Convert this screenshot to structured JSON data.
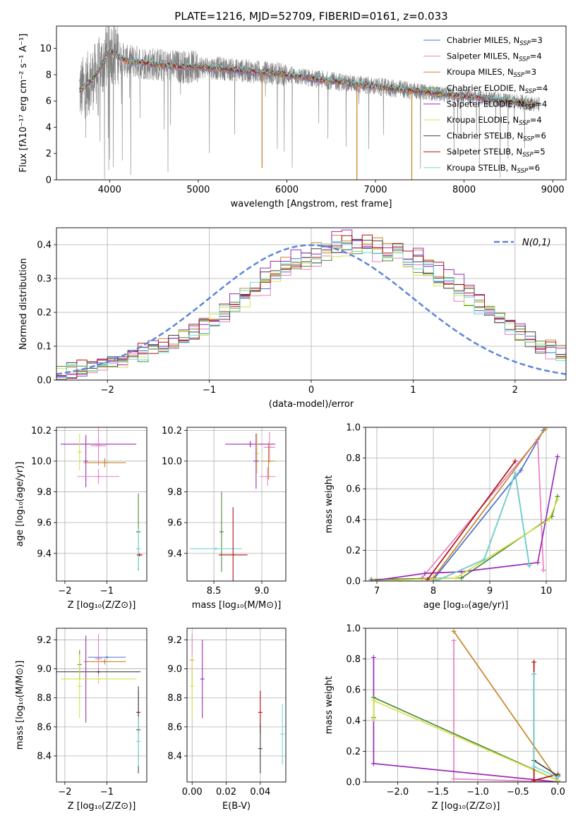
{
  "figure": {
    "title": "PLATE=1216, MJD=52709, FIBERID=0161, z=0.033"
  },
  "chart_data": [
    {
      "id": "spectrum",
      "type": "line",
      "title": "PLATE=1216, MJD=52709, FIBERID=0161, z=0.033",
      "xlabel": "wavelength [Angstrom, rest frame]",
      "ylabel": "Flux [fλ10⁻¹⁷ erg cm⁻² s⁻¹ A⁻¹]",
      "xlim": [
        3400,
        9150
      ],
      "ylim": [
        0,
        11.7
      ],
      "xticks": [
        4000,
        5000,
        6000,
        7000,
        8000,
        9000
      ],
      "yticks": [
        0,
        2,
        4,
        6,
        8,
        10
      ],
      "grid": false,
      "legend_position": "top-right",
      "data_range": [
        3660,
        8850
      ],
      "observed_color": "#808080",
      "continuum": {
        "x": [
          3660,
          3700,
          3800,
          3900,
          4000,
          4100,
          4200,
          4300,
          4400,
          4600,
          4800,
          5000,
          5300,
          5600,
          6000,
          6300,
          6600,
          7000,
          7400,
          7800,
          8200,
          8500,
          8850
        ],
        "y": [
          6.8,
          7.0,
          7.6,
          8.6,
          9.9,
          9.4,
          9.0,
          9.0,
          8.9,
          8.7,
          8.6,
          8.6,
          8.45,
          8.25,
          8.0,
          7.7,
          7.45,
          7.1,
          6.8,
          6.5,
          6.25,
          6.0,
          5.75
        ]
      },
      "absorption_features": [
        {
          "x": 5720,
          "y": 0.9
        },
        {
          "x": 6790,
          "y": 0.0
        },
        {
          "x": 7410,
          "y": 0.0
        }
      ],
      "series": [
        {
          "name": "Chabrier MILES, N_SSP=3",
          "color": "#4a6fd0"
        },
        {
          "name": "Salpeter MILES, N_SSP=4",
          "color": "#e87fc0"
        },
        {
          "name": "Kroupa MILES, N_SSP=3",
          "color": "#c8862a"
        },
        {
          "name": "Chabrier ELODIE, N_SSP=4",
          "color": "#4f8a3c"
        },
        {
          "name": "Salpeter ELODIE, N_SSP=4",
          "color": "#9a2bb8"
        },
        {
          "name": "Kroupa ELODIE, N_SSP=4",
          "color": "#d6e34c"
        },
        {
          "name": "Chabrier STELIB, N_SSP=6",
          "color": "#444444"
        },
        {
          "name": "Salpeter STELIB, N_SSP=5",
          "color": "#b01010"
        },
        {
          "name": "Kroupa STELIB, N_SSP=6",
          "color": "#72d6d8"
        }
      ]
    },
    {
      "id": "residuals",
      "type": "line",
      "xlabel": "(data-model)/error",
      "ylabel": "Normed distribution",
      "xlim": [
        -2.5,
        2.5
      ],
      "ylim": [
        0,
        0.45
      ],
      "xticks": [
        -2,
        -1,
        0,
        1,
        2
      ],
      "yticks": [
        0.0,
        0.1,
        0.2,
        0.3,
        0.4
      ],
      "grid": true,
      "legend_position": "top-right",
      "gauss_label": "N(0,1)",
      "gauss_color": "#5a87d8",
      "histogram": {
        "bin_edges_start": -2.5,
        "bin_width": 0.1,
        "values": [
          0.02,
          0.025,
          0.03,
          0.04,
          0.05,
          0.055,
          0.06,
          0.07,
          0.08,
          0.09,
          0.1,
          0.11,
          0.125,
          0.14,
          0.16,
          0.18,
          0.2,
          0.22,
          0.25,
          0.27,
          0.29,
          0.31,
          0.33,
          0.34,
          0.36,
          0.37,
          0.385,
          0.395,
          0.4,
          0.4,
          0.395,
          0.39,
          0.385,
          0.375,
          0.36,
          0.35,
          0.33,
          0.31,
          0.29,
          0.27,
          0.25,
          0.22,
          0.2,
          0.18,
          0.16,
          0.14,
          0.12,
          0.1,
          0.09,
          0.075
        ]
      }
    },
    {
      "id": "age_vs_Z",
      "type": "scatter",
      "xlabel": "Z [log₁₀(Z/Z⊙)]",
      "ylabel": "age  [log₁₀(age/yr)]",
      "xlim": [
        -2.2,
        -0.05
      ],
      "ylim": [
        9.22,
        10.22
      ],
      "xticks": [
        -2,
        -1
      ],
      "yticks": [
        9.4,
        9.6,
        9.8,
        10.0,
        10.2
      ],
      "grid": true,
      "points": [
        {
          "s": 4,
          "x": -1.2,
          "xerr": 0.9,
          "y": 10.11,
          "yerr": 0.02
        },
        {
          "s": 1,
          "x": -1.2,
          "xerr": 0.18,
          "y": 10.1,
          "yerr": 0.13
        },
        {
          "s": 5,
          "x": -1.65,
          "xerr": 0.05,
          "y": 10.06,
          "yerr": 0.12
        },
        {
          "s": 2,
          "x": -1.05,
          "xerr": 0.5,
          "y": 9.99,
          "yerr": 0.03
        },
        {
          "s": 4,
          "x": -1.5,
          "xerr": 0.02,
          "y": 10.0,
          "yerr": 0.17
        },
        {
          "s": 1,
          "x": -1.2,
          "xerr": 0.5,
          "y": 9.9,
          "yerr": 0.05
        },
        {
          "s": 3,
          "x": -0.25,
          "xerr": 0.05,
          "y": 9.54,
          "yerr": 0.25
        },
        {
          "s": 8,
          "x": -0.25,
          "xerr": 0.03,
          "y": 9.43,
          "yerr": 0.13
        },
        {
          "s": 7,
          "x": -0.22,
          "xerr": 0.07,
          "y": 9.39,
          "yerr": 0.01
        }
      ]
    },
    {
      "id": "age_vs_mass",
      "type": "scatter",
      "xlabel": "mass [log₁₀(M/M⊙)]",
      "ylabel": "",
      "xlim": [
        8.22,
        9.25
      ],
      "ylim": [
        9.22,
        10.22
      ],
      "xticks": [
        8.5,
        9.0
      ],
      "yticks": [
        9.4,
        9.6,
        9.8,
        10.0,
        10.2
      ],
      "grid": true,
      "points": [
        {
          "s": 4,
          "x": 8.88,
          "xerr": 0.26,
          "y": 10.11,
          "yerr": 0.02
        },
        {
          "s": 1,
          "x": 9.08,
          "xerr": 0.06,
          "y": 10.09,
          "yerr": 0.1
        },
        {
          "s": 5,
          "x": 8.95,
          "xerr": 0.02,
          "y": 10.05,
          "yerr": 0.13
        },
        {
          "s": 2,
          "x": 9.07,
          "xerr": 0.07,
          "y": 10.0,
          "yerr": 0.12
        },
        {
          "s": 4,
          "x": 8.94,
          "xerr": 0.03,
          "y": 10.0,
          "yerr": 0.18
        },
        {
          "s": 1,
          "x": 9.06,
          "xerr": 0.08,
          "y": 9.9,
          "yerr": 0.06
        },
        {
          "s": 3,
          "x": 8.58,
          "xerr": 0.01,
          "y": 9.54,
          "yerr": 0.26
        },
        {
          "s": 8,
          "x": 8.52,
          "xerr": 0.27,
          "y": 9.43,
          "yerr": 0.01
        },
        {
          "s": 7,
          "x": 8.7,
          "xerr": 0.15,
          "y": 9.39,
          "yerr": 0.31
        }
      ]
    },
    {
      "id": "weight_vs_age",
      "type": "line",
      "xlabel": "age  [log₁₀(age/yr)]",
      "ylabel": "mass weight",
      "xlim": [
        6.8,
        10.35
      ],
      "ylim": [
        0,
        1
      ],
      "xticks": [
        7,
        8,
        9,
        10
      ],
      "yticks": [
        0.0,
        0.2,
        0.4,
        0.6,
        0.8,
        1.0
      ],
      "grid": true,
      "series": [
        {
          "s": 0,
          "x": [
            8.0,
            9.55,
            9.95
          ],
          "y": [
            0.01,
            0.72,
            0.98
          ]
        },
        {
          "s": 1,
          "x": [
            7.8,
            9.85,
            9.95
          ],
          "y": [
            0.02,
            0.92,
            0.07
          ]
        },
        {
          "s": 2,
          "x": [
            8.0,
            9.98
          ],
          "y": [
            0.02,
            0.99
          ]
        },
        {
          "s": 3,
          "x": [
            6.9,
            8.5,
            10.1,
            10.2
          ],
          "y": [
            0.01,
            0.02,
            0.42,
            0.55
          ]
        },
        {
          "s": 4,
          "x": [
            6.9,
            7.85,
            8.5,
            9.85,
            10.2
          ],
          "y": [
            0.0,
            0.05,
            0.06,
            0.12,
            0.81
          ]
        },
        {
          "s": 5,
          "x": [
            6.95,
            8.4,
            10.05,
            10.2
          ],
          "y": [
            0.0,
            0.02,
            0.4,
            0.53
          ]
        },
        {
          "s": 6,
          "x": [
            8.05,
            8.9,
            9.45,
            9.7
          ],
          "y": [
            0.0,
            0.14,
            0.7,
            0.1
          ]
        },
        {
          "s": 7,
          "x": [
            7.9,
            9.45
          ],
          "y": [
            0.01,
            0.78
          ]
        },
        {
          "s": 8,
          "x": [
            8.05,
            8.9,
            9.45,
            9.7
          ],
          "y": [
            0.0,
            0.14,
            0.7,
            0.1
          ]
        }
      ]
    },
    {
      "id": "mass_vs_Z",
      "type": "scatter",
      "xlabel": "Z [log₁₀(Z/Z⊙)]",
      "ylabel": "mass [log₁₀(M/M⊙)]",
      "xlim": [
        -2.2,
        -0.05
      ],
      "ylim": [
        8.22,
        9.28
      ],
      "xticks": [
        -2,
        -1
      ],
      "yticks": [
        8.4,
        8.6,
        8.8,
        9.0,
        9.2
      ],
      "grid": true,
      "points": [
        {
          "s": 1,
          "x": -1.2,
          "xerr": 0.08,
          "y": 9.07,
          "yerr": 0.17
        },
        {
          "s": 0,
          "x": -1.0,
          "xerr": 0.45,
          "y": 9.08,
          "yerr": 0.01
        },
        {
          "s": 2,
          "x": -1.05,
          "xerr": 0.5,
          "y": 9.05,
          "yerr": 0.02
        },
        {
          "s": 3,
          "x": -1.65,
          "xerr": 0.02,
          "y": 9.03,
          "yerr": 0.1
        },
        {
          "s": 6,
          "x": -1.2,
          "xerr": 1.0,
          "y": 8.98,
          "yerr": 0.01
        },
        {
          "s": 4,
          "x": -1.5,
          "xerr": 0.02,
          "y": 8.93,
          "yerr": 0.3
        },
        {
          "s": 5,
          "x": -1.2,
          "xerr": 0.9,
          "y": 8.93,
          "yerr": 0.02
        },
        {
          "s": 5,
          "x": -1.65,
          "xerr": 0.02,
          "y": 8.88,
          "yerr": 0.22
        },
        {
          "s": 7,
          "x": -0.25,
          "xerr": 0.03,
          "y": 8.7,
          "yerr": 0.15
        },
        {
          "s": 6,
          "x": -0.25,
          "xerr": 0.03,
          "y": 8.58,
          "yerr": 0.3
        },
        {
          "s": 8,
          "x": -0.25,
          "xerr": 0.02,
          "y": 8.5,
          "yerr": 0.17
        }
      ]
    },
    {
      "id": "mass_vs_ebv",
      "type": "scatter",
      "xlabel": "E(B-V)",
      "ylabel": "",
      "xlim": [
        -0.003,
        0.055
      ],
      "ylim": [
        8.22,
        9.28
      ],
      "xticks": [
        0.0,
        0.02,
        0.04
      ],
      "yticks": [
        8.4,
        8.6,
        8.8,
        9.0,
        9.2
      ],
      "grid": true,
      "points": [
        {
          "s": 1,
          "x": 0.0,
          "xerr": 0,
          "y": 9.06,
          "yerr": 0.18
        },
        {
          "s": 5,
          "x": 0.0,
          "xerr": 0,
          "y": 8.88,
          "yerr": 0.22
        },
        {
          "s": 4,
          "x": 0.006,
          "xerr": 0,
          "y": 8.93,
          "yerr": 0.27
        },
        {
          "s": 7,
          "x": 0.04,
          "xerr": 0,
          "y": 8.7,
          "yerr": 0.15
        },
        {
          "s": 6,
          "x": 0.04,
          "xerr": 0,
          "y": 8.45,
          "yerr": 0.17
        },
        {
          "s": 8,
          "x": 0.053,
          "xerr": 0,
          "y": 8.55,
          "yerr": 0.21
        }
      ]
    },
    {
      "id": "weight_vs_Z",
      "type": "line",
      "xlabel": "Z [log₁₀(Z/Z⊙)]",
      "ylabel": "mass weight",
      "xlim": [
        -2.4,
        0.1
      ],
      "ylim": [
        0,
        1
      ],
      "xticks": [
        -2.0,
        -1.5,
        -1.0,
        -0.5,
        0.0
      ],
      "yticks": [
        0.0,
        0.2,
        0.4,
        0.6,
        0.8,
        1.0
      ],
      "grid": true,
      "series": [
        {
          "s": 2,
          "x": [
            -1.3,
            0.0
          ],
          "y": [
            0.98,
            0.01
          ]
        },
        {
          "s": 1,
          "x": [
            -1.3,
            -1.3,
            0.0
          ],
          "y": [
            0.92,
            0.02,
            0.0
          ]
        },
        {
          "s": 4,
          "x": [
            -2.3,
            -2.3,
            0.0
          ],
          "y": [
            0.81,
            0.12,
            0.0
          ]
        },
        {
          "s": 3,
          "x": [
            -2.3,
            -2.3,
            0.0
          ],
          "y": [
            0.42,
            0.55,
            0.01
          ]
        },
        {
          "s": 5,
          "x": [
            -2.3,
            -2.3,
            0.0
          ],
          "y": [
            0.41,
            0.53,
            0.01
          ]
        },
        {
          "s": 7,
          "x": [
            -0.3,
            -0.3,
            0.0
          ],
          "y": [
            0.78,
            0.01,
            0.05
          ]
        },
        {
          "s": 6,
          "x": [
            -0.3,
            -0.3,
            0.0
          ],
          "y": [
            0.7,
            0.14,
            0.04
          ]
        },
        {
          "s": 8,
          "x": [
            -0.3,
            -0.3,
            0.0
          ],
          "y": [
            0.7,
            0.1,
            0.03
          ]
        }
      ]
    }
  ]
}
